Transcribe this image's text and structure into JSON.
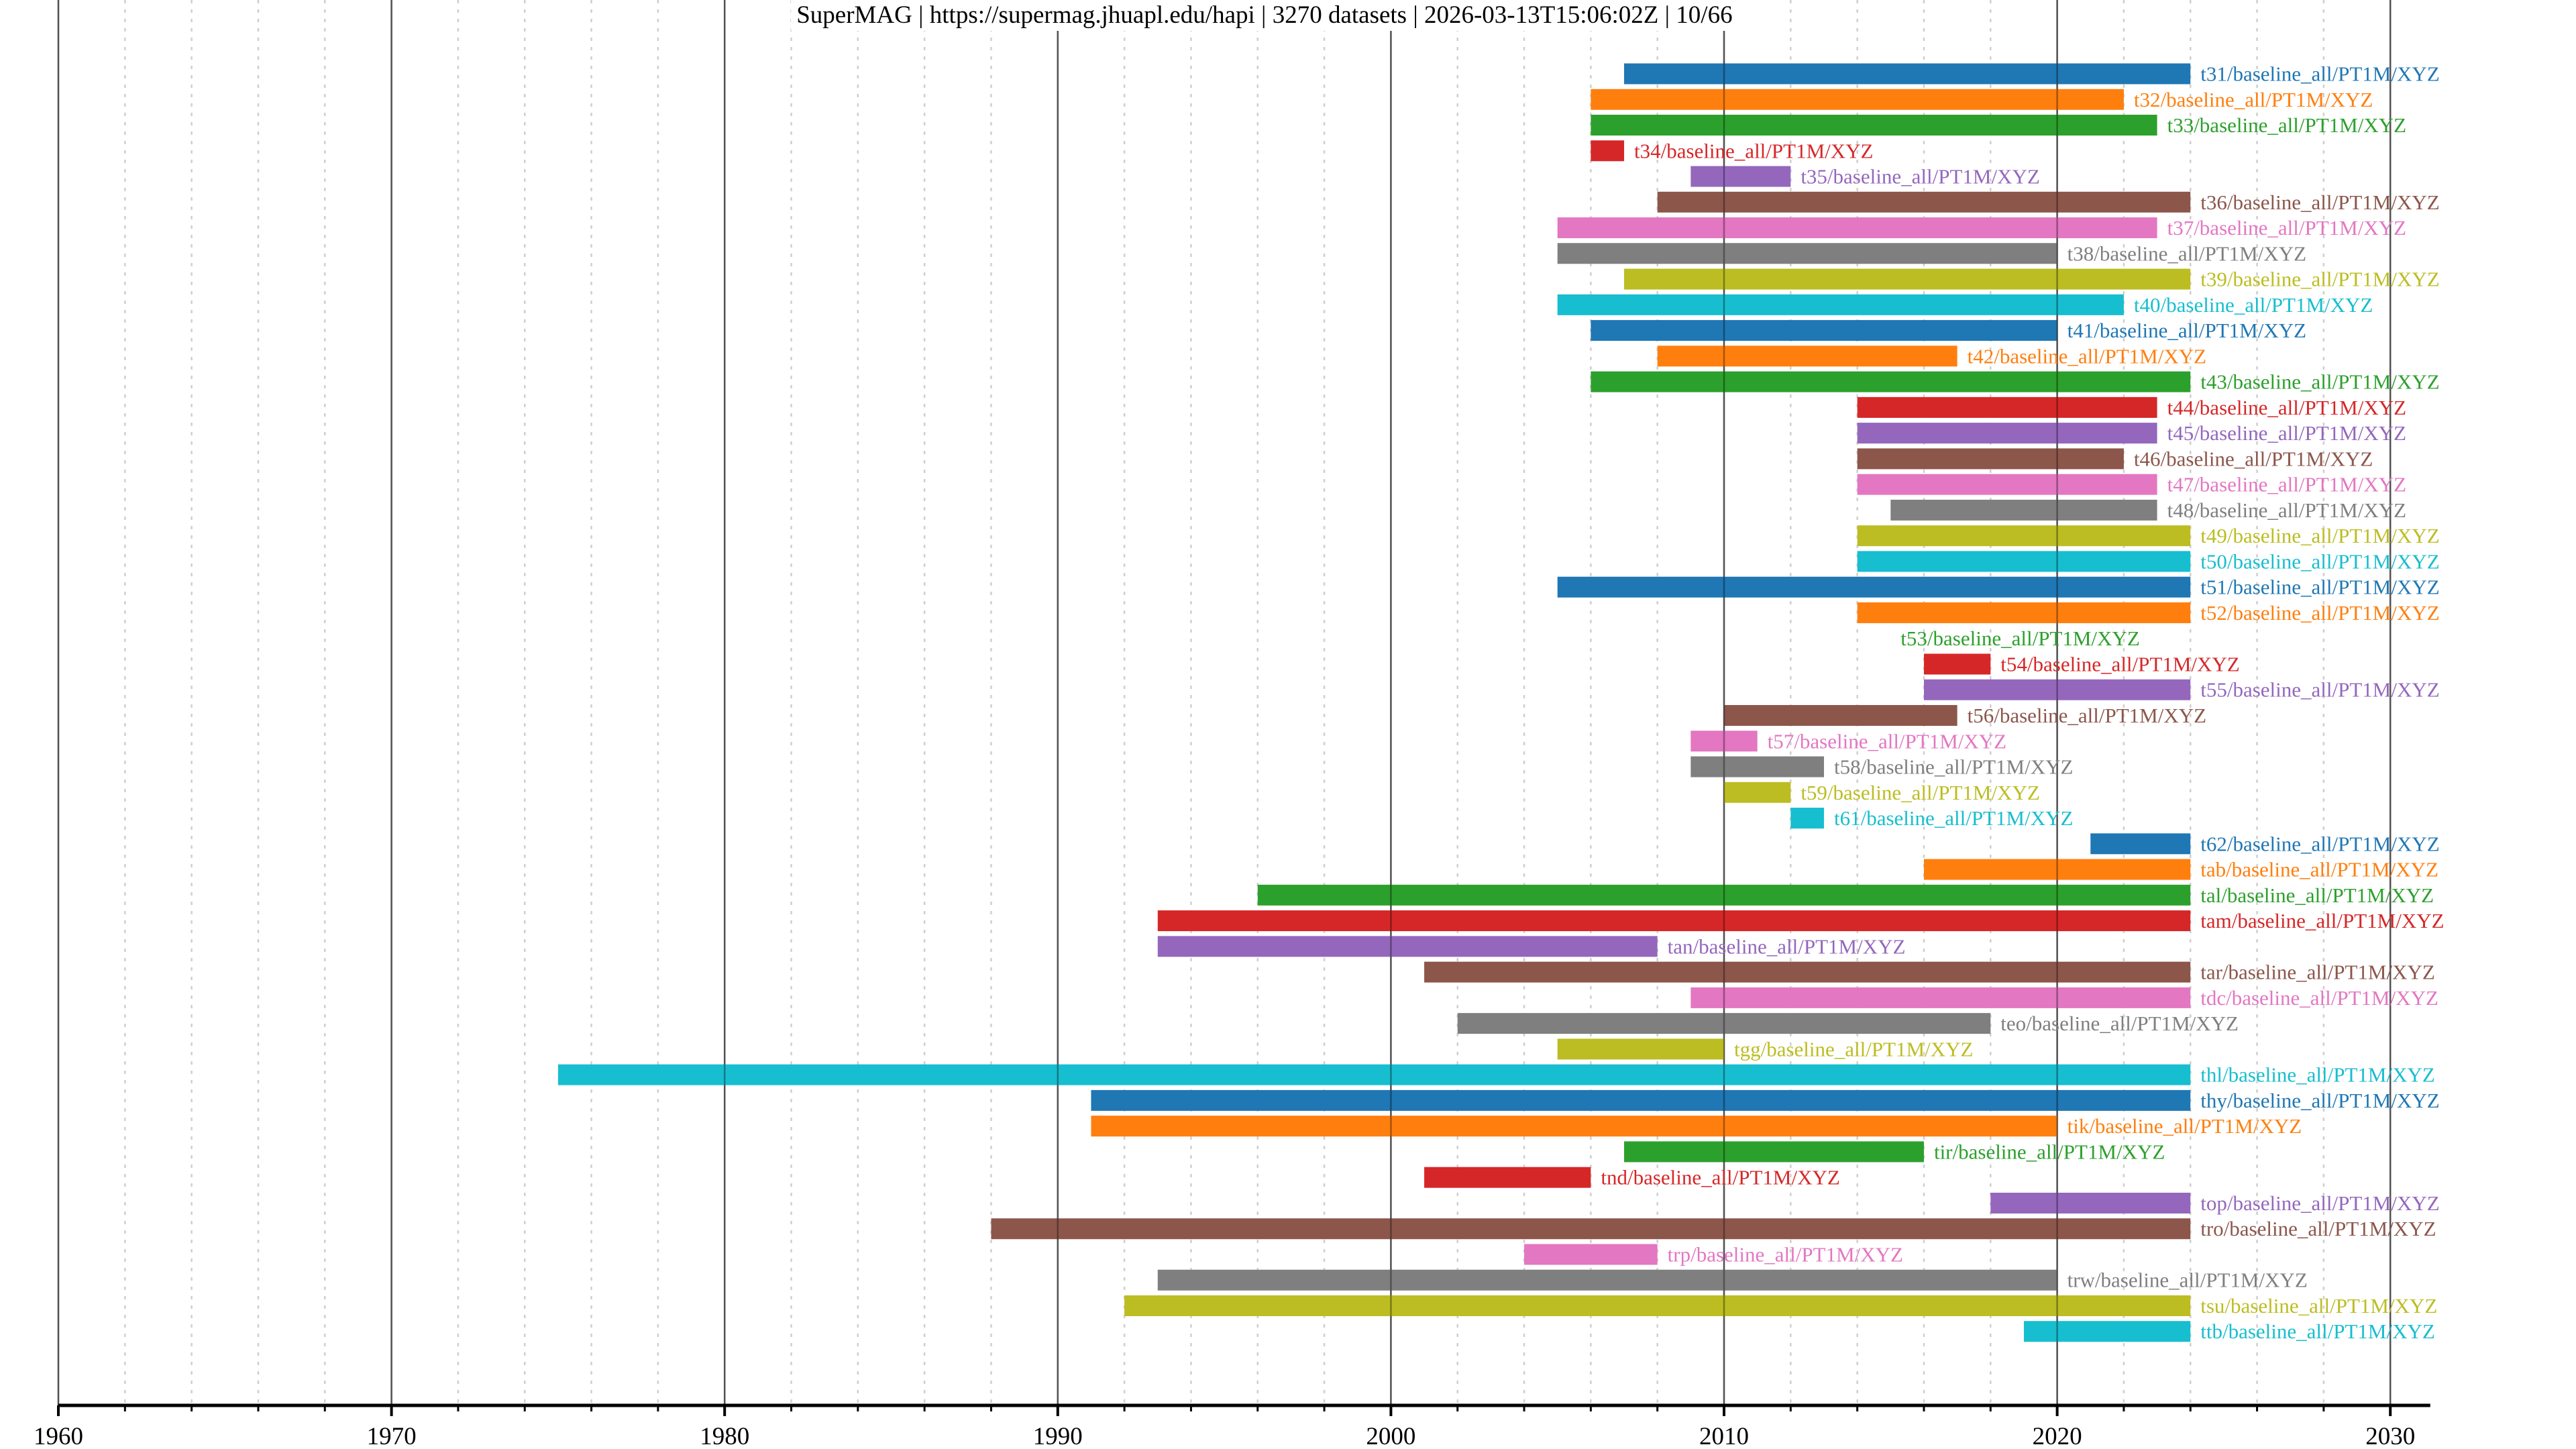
{
  "title": "SuperMAG | https://supermag.jhuapl.edu/hapi | 3270 datasets | 2026-03-13T15:06:02Z | 10/66",
  "chart_data": {
    "type": "timeline",
    "title": "SuperMAG | https://supermag.jhuapl.edu/hapi | 3270 datasets | 2026-03-13T15:06:02Z | 10/66",
    "xlabel": "",
    "ylabel": "",
    "xlim": [
      1960,
      2031.2
    ],
    "x_major_ticks": [
      1960,
      1970,
      1980,
      1990,
      2000,
      2010,
      2020,
      2030
    ],
    "x_tick_labels": [
      "1960",
      "1970",
      "1980",
      "1990",
      "2000",
      "2010",
      "2020",
      "2030"
    ],
    "x_minor_tick_step": 2,
    "grid": {
      "major": "solid",
      "minor": "dotted"
    },
    "legend": "none (labels placed right of each bar)",
    "palette": [
      "#1f77b4",
      "#ff7f0e",
      "#2ca02c",
      "#d62728",
      "#9467bd",
      "#8c564b",
      "#e377c2",
      "#7f7f7f",
      "#bcbd22",
      "#17becf"
    ],
    "series": [
      {
        "name": "t31/baseline_all/PT1M/XYZ",
        "start": 2007,
        "end": 2024
      },
      {
        "name": "t32/baseline_all/PT1M/XYZ",
        "start": 2006,
        "end": 2022
      },
      {
        "name": "t33/baseline_all/PT1M/XYZ",
        "start": 2006,
        "end": 2023
      },
      {
        "name": "t34/baseline_all/PT1M/XYZ",
        "start": 2006,
        "end": 2007
      },
      {
        "name": "t35/baseline_all/PT1M/XYZ",
        "start": 2009,
        "end": 2012
      },
      {
        "name": "t36/baseline_all/PT1M/XYZ",
        "start": 2008,
        "end": 2024
      },
      {
        "name": "t37/baseline_all/PT1M/XYZ",
        "start": 2005,
        "end": 2023
      },
      {
        "name": "t38/baseline_all/PT1M/XYZ",
        "start": 2005,
        "end": 2020
      },
      {
        "name": "t39/baseline_all/PT1M/XYZ",
        "start": 2007,
        "end": 2024
      },
      {
        "name": "t40/baseline_all/PT1M/XYZ",
        "start": 2005,
        "end": 2022
      },
      {
        "name": "t41/baseline_all/PT1M/XYZ",
        "start": 2006,
        "end": 2020
      },
      {
        "name": "t42/baseline_all/PT1M/XYZ",
        "start": 2008,
        "end": 2017
      },
      {
        "name": "t43/baseline_all/PT1M/XYZ",
        "start": 2006,
        "end": 2024
      },
      {
        "name": "t44/baseline_all/PT1M/XYZ",
        "start": 2014,
        "end": 2023
      },
      {
        "name": "t45/baseline_all/PT1M/XYZ",
        "start": 2014,
        "end": 2023
      },
      {
        "name": "t46/baseline_all/PT1M/XYZ",
        "start": 2014,
        "end": 2022
      },
      {
        "name": "t47/baseline_all/PT1M/XYZ",
        "start": 2014,
        "end": 2023
      },
      {
        "name": "t48/baseline_all/PT1M/XYZ",
        "start": 2015,
        "end": 2023
      },
      {
        "name": "t49/baseline_all/PT1M/XYZ",
        "start": 2014,
        "end": 2024
      },
      {
        "name": "t50/baseline_all/PT1M/XYZ",
        "start": 2014,
        "end": 2024
      },
      {
        "name": "t51/baseline_all/PT1M/XYZ",
        "start": 2005,
        "end": 2024
      },
      {
        "name": "t52/baseline_all/PT1M/XYZ",
        "start": 2014,
        "end": 2024
      },
      {
        "name": "t53/baseline_all/PT1M/XYZ",
        "start": 2015,
        "end": 2015
      },
      {
        "name": "t54/baseline_all/PT1M/XYZ",
        "start": 2016,
        "end": 2018
      },
      {
        "name": "t55/baseline_all/PT1M/XYZ",
        "start": 2016,
        "end": 2024
      },
      {
        "name": "t56/baseline_all/PT1M/XYZ",
        "start": 2010,
        "end": 2017
      },
      {
        "name": "t57/baseline_all/PT1M/XYZ",
        "start": 2009,
        "end": 2011
      },
      {
        "name": "t58/baseline_all/PT1M/XYZ",
        "start": 2009,
        "end": 2013
      },
      {
        "name": "t59/baseline_all/PT1M/XYZ",
        "start": 2010,
        "end": 2012
      },
      {
        "name": "t61/baseline_all/PT1M/XYZ",
        "start": 2012,
        "end": 2013
      },
      {
        "name": "t62/baseline_all/PT1M/XYZ",
        "start": 2021,
        "end": 2024
      },
      {
        "name": "tab/baseline_all/PT1M/XYZ",
        "start": 2016,
        "end": 2024
      },
      {
        "name": "tal/baseline_all/PT1M/XYZ",
        "start": 1996,
        "end": 2024
      },
      {
        "name": "tam/baseline_all/PT1M/XYZ",
        "start": 1993,
        "end": 2024
      },
      {
        "name": "tan/baseline_all/PT1M/XYZ",
        "start": 1993,
        "end": 2008
      },
      {
        "name": "tar/baseline_all/PT1M/XYZ",
        "start": 2001,
        "end": 2024
      },
      {
        "name": "tdc/baseline_all/PT1M/XYZ",
        "start": 2009,
        "end": 2024
      },
      {
        "name": "teo/baseline_all/PT1M/XYZ",
        "start": 2002,
        "end": 2018
      },
      {
        "name": "tgg/baseline_all/PT1M/XYZ",
        "start": 2005,
        "end": 2010
      },
      {
        "name": "thl/baseline_all/PT1M/XYZ",
        "start": 1975,
        "end": 2024
      },
      {
        "name": "thy/baseline_all/PT1M/XYZ",
        "start": 1991,
        "end": 2024
      },
      {
        "name": "tik/baseline_all/PT1M/XYZ",
        "start": 1991,
        "end": 2020
      },
      {
        "name": "tir/baseline_all/PT1M/XYZ",
        "start": 2007,
        "end": 2016
      },
      {
        "name": "tnd/baseline_all/PT1M/XYZ",
        "start": 2001,
        "end": 2006
      },
      {
        "name": "top/baseline_all/PT1M/XYZ",
        "start": 2018,
        "end": 2024
      },
      {
        "name": "tro/baseline_all/PT1M/XYZ",
        "start": 1988,
        "end": 2024
      },
      {
        "name": "trp/baseline_all/PT1M/XYZ",
        "start": 2004,
        "end": 2008
      },
      {
        "name": "trw/baseline_all/PT1M/XYZ",
        "start": 1993,
        "end": 2020
      },
      {
        "name": "tsu/baseline_all/PT1M/XYZ",
        "start": 1992,
        "end": 2024
      },
      {
        "name": "ttb/baseline_all/PT1M/XYZ",
        "start": 2019,
        "end": 2024
      }
    ]
  }
}
